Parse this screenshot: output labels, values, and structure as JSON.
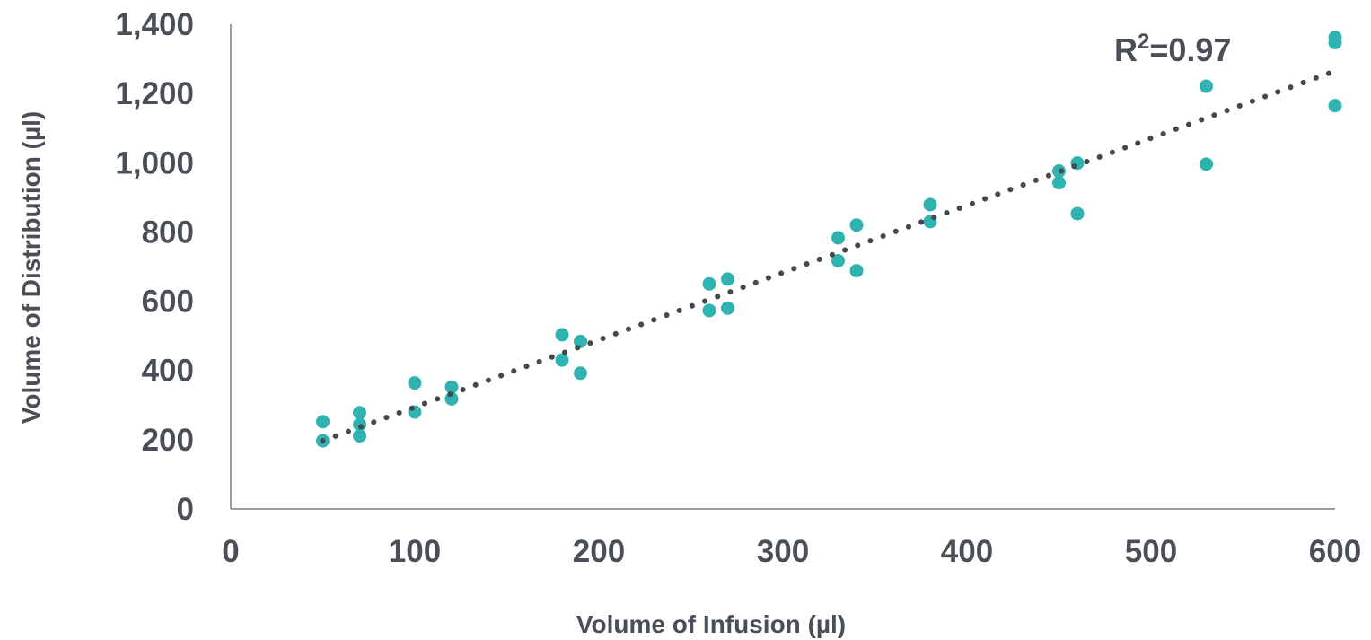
{
  "chart_data": {
    "type": "scatter",
    "xlabel": "Volume of Infusion (µl)",
    "ylabel": "Volume of Distribution (µl)",
    "xlim": [
      0,
      600
    ],
    "ylim": [
      0,
      1400
    ],
    "x_ticks": [
      0,
      100,
      200,
      300,
      400,
      500,
      600
    ],
    "y_ticks": [
      0,
      200,
      400,
      600,
      800,
      1000,
      1200,
      1400
    ],
    "x_tick_labels": [
      "0",
      "100",
      "200",
      "300",
      "400",
      "500",
      "600"
    ],
    "y_tick_labels": [
      "0",
      "200",
      "400",
      "600",
      "800",
      "1,000",
      "1,200",
      "1,400"
    ],
    "grid": false,
    "legend": "none",
    "colors": {
      "points": "#2fb3b1",
      "trendline": "#444850",
      "text": "#4a4e56"
    },
    "series": [
      {
        "points": [
          {
            "x": 50,
            "y": 252
          },
          {
            "x": 50,
            "y": 197
          },
          {
            "x": 70,
            "y": 278
          },
          {
            "x": 70,
            "y": 244
          },
          {
            "x": 70,
            "y": 211
          },
          {
            "x": 100,
            "y": 364
          },
          {
            "x": 100,
            "y": 280
          },
          {
            "x": 120,
            "y": 352
          },
          {
            "x": 120,
            "y": 318
          },
          {
            "x": 180,
            "y": 503
          },
          {
            "x": 180,
            "y": 430
          },
          {
            "x": 190,
            "y": 484
          },
          {
            "x": 190,
            "y": 392
          },
          {
            "x": 260,
            "y": 650
          },
          {
            "x": 260,
            "y": 573
          },
          {
            "x": 270,
            "y": 664
          },
          {
            "x": 270,
            "y": 580
          },
          {
            "x": 330,
            "y": 783
          },
          {
            "x": 330,
            "y": 717
          },
          {
            "x": 340,
            "y": 820
          },
          {
            "x": 340,
            "y": 688
          },
          {
            "x": 380,
            "y": 879
          },
          {
            "x": 380,
            "y": 830
          },
          {
            "x": 450,
            "y": 976
          },
          {
            "x": 450,
            "y": 942
          },
          {
            "x": 460,
            "y": 999
          },
          {
            "x": 460,
            "y": 853
          },
          {
            "x": 530,
            "y": 1221
          },
          {
            "x": 530,
            "y": 996
          },
          {
            "x": 600,
            "y": 1362
          },
          {
            "x": 600,
            "y": 1347
          },
          {
            "x": 600,
            "y": 1165
          }
        ]
      }
    ],
    "trendline": {
      "type": "linear",
      "from": {
        "x": 50,
        "y": 197
      },
      "to": {
        "x": 600,
        "y": 1265
      }
    },
    "annotation": {
      "base": "R",
      "superscript": "2",
      "rest": "=0.97"
    }
  }
}
